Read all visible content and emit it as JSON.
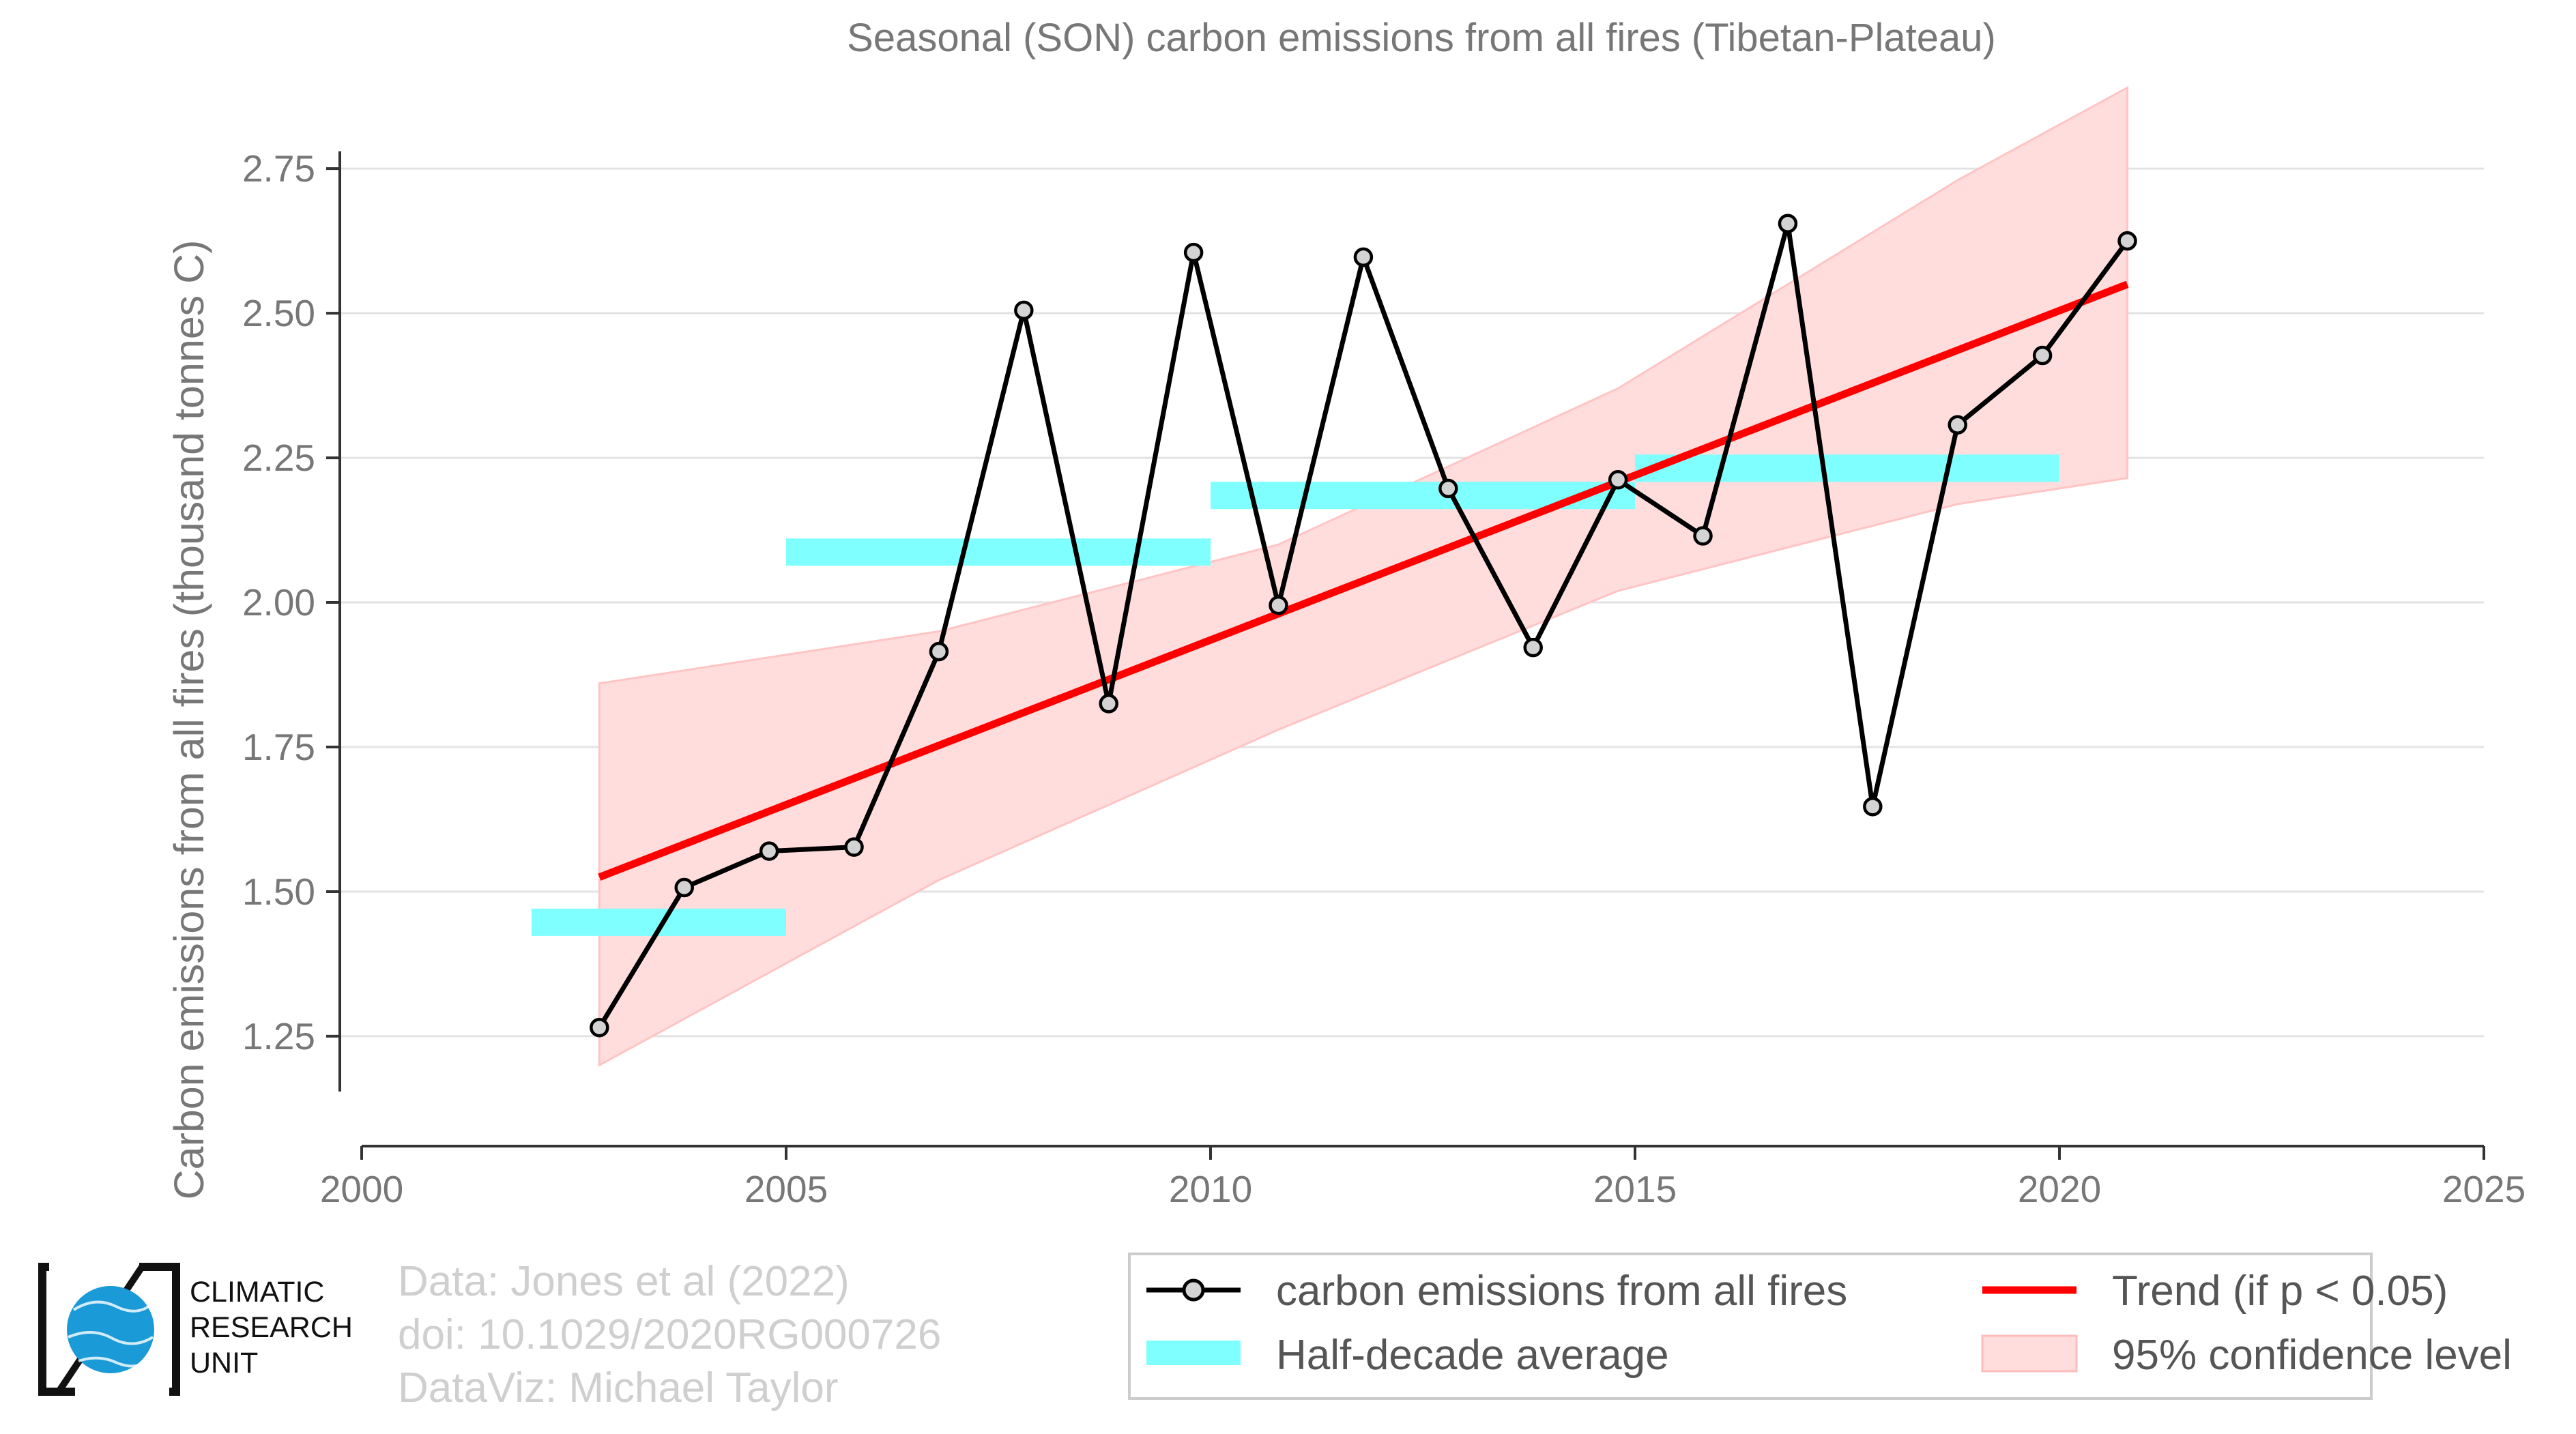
{
  "chart_data": {
    "type": "line",
    "title": "Seasonal (SON) carbon emissions from all fires (Tibetan-Plateau)",
    "xlabel": "",
    "ylabel": "Carbon emissions from all fires (thousand tonnes C)",
    "xlim": [
      2000,
      2025
    ],
    "ylim": [
      1.06,
      2.9
    ],
    "x_ticks": [
      "2000",
      "2005",
      "2010",
      "2015",
      "2020",
      "2025"
    ],
    "y_ticks": [
      "1.25",
      "1.50",
      "1.75",
      "2.00",
      "2.25",
      "2.50",
      "2.75"
    ],
    "grid": true,
    "series": [
      {
        "name": "carbon emissions from all fires",
        "color": "#000000",
        "x": [
          2002.8,
          2003.8,
          2004.8,
          2005.8,
          2006.8,
          2007.8,
          2008.8,
          2009.8,
          2010.8,
          2011.8,
          2012.8,
          2013.8,
          2014.8,
          2015.8,
          2016.8,
          2017.8,
          2018.8,
          2019.8,
          2020.8
        ],
        "values": [
          1.265,
          1.507,
          1.57,
          1.577,
          1.915,
          2.505,
          1.825,
          2.605,
          1.995,
          2.597,
          2.197,
          1.922,
          2.212,
          2.115,
          2.655,
          1.647,
          2.307,
          2.427,
          2.625
        ]
      }
    ],
    "half_decade_average": {
      "name": "Half-decade average",
      "color": "#7fffff",
      "segments": [
        {
          "x_start": 2002.0,
          "x_end": 2005.0,
          "value": 1.447
        },
        {
          "x_start": 2005.0,
          "x_end": 2010.0,
          "value": 2.087
        },
        {
          "x_start": 2010.0,
          "x_end": 2015.0,
          "value": 2.185
        },
        {
          "x_start": 2015.0,
          "x_end": 2020.0,
          "value": 2.232
        }
      ]
    },
    "trend": {
      "name": "Trend (if p < 0.05)",
      "color": "#ff0000",
      "x": [
        2002.8,
        2020.8
      ],
      "values": [
        1.525,
        2.55
      ]
    },
    "confidence": {
      "name": "95% confidence level",
      "color": "#ffdddd",
      "x": [
        2002.8,
        2006.8,
        2010.8,
        2014.8,
        2018.8,
        2020.8
      ],
      "upper": [
        1.86,
        1.95,
        2.1,
        2.37,
        2.73,
        2.89
      ],
      "lower": [
        1.2,
        1.52,
        1.78,
        2.02,
        2.17,
        2.215
      ]
    },
    "legend_position": "bottom-right"
  },
  "credits": {
    "line1": "Data: Jones et al (2022)",
    "line2": "doi: 10.1029/2020RG000726",
    "line3": "DataViz: Michael Taylor"
  },
  "logo": {
    "line1": "CLIMATIC",
    "line2": "RESEARCH",
    "line3": "UNIT",
    "globe_color": "#1a9ad6"
  }
}
